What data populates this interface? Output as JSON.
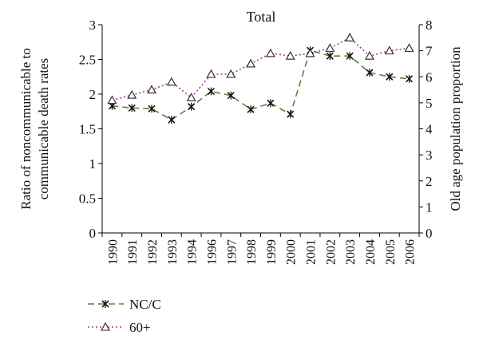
{
  "chart_data": {
    "type": "line",
    "title": "Total",
    "ylabel": "Ratio of noncommunicable to communicable death rates",
    "ylabel_lines": [
      "Ratio of noncommunicable to",
      "communicable death rates"
    ],
    "y2label": "Old age population proportion",
    "x": [
      "1990",
      "1991",
      "1992",
      "1993",
      "1994",
      "1996",
      "1997",
      "1998",
      "1999",
      "2000",
      "2001",
      "2002",
      "2003",
      "2004",
      "2005",
      "2006"
    ],
    "ylim": [
      0,
      3
    ],
    "y2lim": [
      0,
      8
    ],
    "yticks": [
      "0",
      "0.5",
      "1",
      "1.5",
      "2",
      "2.5",
      "3"
    ],
    "y2ticks": [
      "0",
      "1",
      "2",
      "3",
      "4",
      "5",
      "6",
      "7",
      "8"
    ],
    "legend_position": "bottom-left",
    "series": [
      {
        "name": "NC/C",
        "axis": "left",
        "marker": "x",
        "color": "#6b7a3a",
        "dash": "dashed",
        "values": [
          1.83,
          1.8,
          1.79,
          1.63,
          1.82,
          2.04,
          1.98,
          1.78,
          1.87,
          1.71,
          2.63,
          2.55,
          2.55,
          2.31,
          2.25,
          2.22
        ]
      },
      {
        "name": "60+",
        "axis": "right",
        "marker": "triangle",
        "color": "#b0309a",
        "dash": "dotted",
        "values": [
          5.1,
          5.3,
          5.5,
          5.8,
          5.2,
          6.1,
          6.1,
          6.5,
          6.9,
          6.8,
          6.9,
          7.1,
          7.5,
          6.8,
          7.0,
          7.1
        ]
      }
    ]
  }
}
